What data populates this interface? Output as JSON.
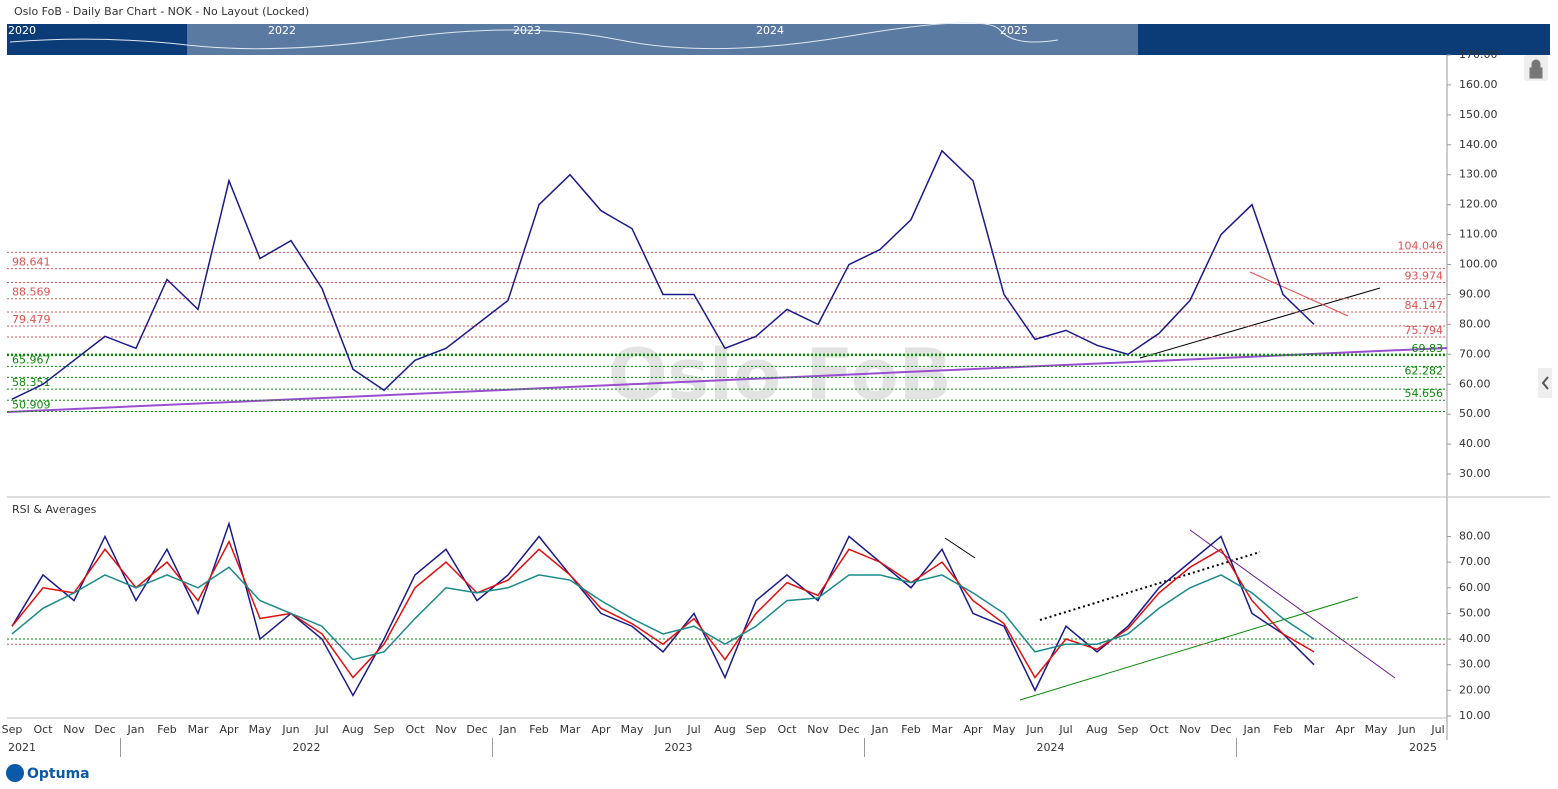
{
  "header": {
    "title": "Oslo FoB - Daily Bar Chart - NOK - No Layout (Locked)",
    "logo": "Optuma"
  },
  "navigator": {
    "years": [
      "2020",
      "2022",
      "2023",
      "2024",
      "2025"
    ]
  },
  "time_axis": {
    "months": [
      "Sep",
      "Oct",
      "Nov",
      "Dec",
      "Jan",
      "Feb",
      "Mar",
      "Apr",
      "May",
      "Jun",
      "Jul",
      "Aug",
      "Sep",
      "Oct",
      "Nov",
      "Dec",
      "Jan",
      "Feb",
      "Mar",
      "Apr",
      "May",
      "Jun",
      "Jul",
      "Aug",
      "Sep",
      "Oct",
      "Nov",
      "Dec",
      "Jan",
      "Feb",
      "Mar",
      "Apr",
      "May",
      "Jun",
      "Jul",
      "Aug",
      "Sep",
      "Oct",
      "Nov",
      "Dec",
      "Jan",
      "Feb",
      "Mar",
      "Apr",
      "May",
      "Jun",
      "Jul"
    ],
    "years": [
      "2021",
      "2022",
      "2023",
      "2024",
      "2025"
    ]
  },
  "chart_data": [
    {
      "type": "line",
      "watermark": "Oslo FoB",
      "series": [
        {
          "color": "#1a1a8c",
          "values": [
            55,
            60,
            68,
            76,
            72,
            95,
            85,
            128,
            102,
            108,
            92,
            65,
            58,
            68,
            72,
            80,
            88,
            120,
            130,
            118,
            112,
            90,
            90,
            72,
            76,
            85,
            80,
            100,
            105,
            115,
            138,
            128,
            90,
            75,
            78,
            73,
            70,
            77,
            88,
            110,
            120,
            90,
            80,
            null,
            null,
            null,
            null
          ]
        }
      ],
      "ylim": [
        23,
        170
      ],
      "yticks": [
        {
          "value": 30,
          "label": "30.00"
        },
        {
          "value": 40,
          "label": "40.00"
        },
        {
          "value": 50,
          "label": "50.00"
        },
        {
          "value": 60,
          "label": "60.00"
        },
        {
          "value": 70,
          "label": "70.00"
        },
        {
          "value": 80,
          "label": "80.00"
        },
        {
          "value": 90,
          "label": "90.00"
        },
        {
          "value": 100,
          "label": "100.00"
        },
        {
          "value": 110,
          "label": "110.00"
        },
        {
          "value": 120,
          "label": "120.00"
        },
        {
          "value": 130,
          "label": "130.00"
        },
        {
          "value": 140,
          "label": "140.00"
        },
        {
          "value": 150,
          "label": "150.00"
        },
        {
          "value": 160,
          "label": "160.00"
        },
        {
          "value": 170,
          "label": "170.00"
        }
      ],
      "red_levels": {
        "color": "#e05050",
        "values": [
          104.046,
          98.641,
          93.974,
          88.569,
          84.147,
          79.479,
          75.794
        ]
      },
      "green_levels": {
        "color": "#0a8a0a",
        "values": [
          69.83,
          65.967,
          62.282,
          58.351,
          54.656,
          50.909
        ]
      }
    },
    {
      "type": "line",
      "title": "RSI & Averages",
      "series": [
        {
          "color": "#1a1a8c",
          "values": [
            45,
            65,
            55,
            80,
            55,
            75,
            50,
            85,
            40,
            50,
            40,
            18,
            40,
            65,
            75,
            55,
            65,
            80,
            65,
            50,
            45,
            35,
            50,
            25,
            55,
            65,
            55,
            80,
            70,
            60,
            75,
            50,
            45,
            20,
            45,
            35,
            45,
            60,
            70,
            80,
            50,
            42,
            30,
            null,
            null,
            null,
            null
          ]
        },
        {
          "color": "#e01010",
          "values": [
            45,
            60,
            58,
            75,
            60,
            70,
            55,
            78,
            48,
            50,
            42,
            25,
            38,
            60,
            70,
            58,
            63,
            75,
            65,
            52,
            46,
            38,
            48,
            32,
            50,
            62,
            57,
            75,
            70,
            62,
            70,
            55,
            46,
            25,
            40,
            36,
            44,
            58,
            68,
            75,
            55,
            42,
            35,
            null,
            null,
            null,
            null
          ]
        },
        {
          "color": "#1a8a8a",
          "values": [
            42,
            52,
            58,
            65,
            60,
            65,
            60,
            68,
            55,
            50,
            45,
            32,
            35,
            48,
            60,
            58,
            60,
            65,
            63,
            55,
            48,
            42,
            45,
            38,
            45,
            55,
            56,
            65,
            65,
            62,
            65,
            58,
            50,
            35,
            38,
            38,
            42,
            52,
            60,
            65,
            58,
            48,
            40,
            null,
            null,
            null,
            null
          ]
        }
      ],
      "ylim": [
        10,
        95
      ],
      "yticks": [
        {
          "value": 10,
          "label": "10.00"
        },
        {
          "value": 20,
          "label": "20.00"
        },
        {
          "value": 30,
          "label": "30.00"
        },
        {
          "value": 40,
          "label": "40.00"
        },
        {
          "value": 50,
          "label": "50.00"
        },
        {
          "value": 60,
          "label": "60.00"
        },
        {
          "value": 70,
          "label": "70.00"
        },
        {
          "value": 80,
          "label": "80.00"
        }
      ],
      "levels": [
        {
          "value": 40,
          "color": "#0a8a0a"
        },
        {
          "value": 38,
          "color": "#e05050"
        }
      ]
    }
  ]
}
